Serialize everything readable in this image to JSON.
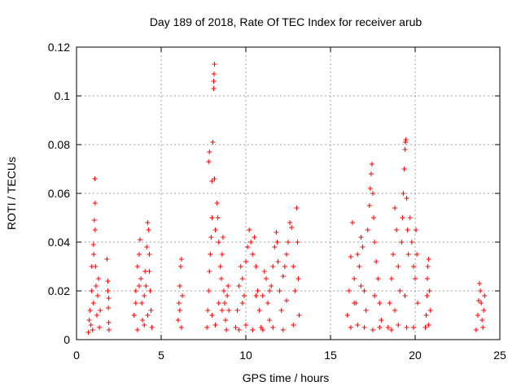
{
  "chart_data": {
    "type": "scatter",
    "title": "Day 189 of 2018, Rate Of TEC Index for receiver arub",
    "xlabel": "GPS time / hours",
    "ylabel": "ROTI / TECUs",
    "xlim": [
      0,
      25
    ],
    "ylim": [
      0,
      0.12
    ],
    "xticks": [
      0,
      5,
      10,
      15,
      20,
      25
    ],
    "xtick_labels": [
      "0",
      "5",
      "10",
      "15",
      "20",
      "25"
    ],
    "yticks": [
      0,
      0.02,
      0.04,
      0.06,
      0.08,
      0.1,
      0.12
    ],
    "ytick_labels": [
      "0",
      "0.02",
      "0.04",
      "0.06",
      "0.08",
      "0.1",
      "0.12"
    ],
    "grid": true,
    "marker": "+",
    "color": "#ff0000",
    "series": [
      {
        "name": "ROTI",
        "points": [
          [
            0.7,
            0.003
          ],
          [
            0.75,
            0.008
          ],
          [
            0.8,
            0.012
          ],
          [
            0.85,
            0.006
          ],
          [
            0.9,
            0.02
          ],
          [
            0.95,
            0.004
          ],
          [
            1.0,
            0.015
          ],
          [
            1.02,
            0.035
          ],
          [
            1.05,
            0.049
          ],
          [
            1.08,
            0.066
          ],
          [
            1.1,
            0.056
          ],
          [
            1.12,
            0.03
          ],
          [
            1.15,
            0.022
          ],
          [
            1.2,
            0.01
          ],
          [
            1.25,
            0.018
          ],
          [
            1.3,
            0.025
          ],
          [
            1.35,
            0.005
          ],
          [
            1.4,
            0.012
          ],
          [
            0.9,
            0.03
          ],
          [
            1.0,
            0.039
          ],
          [
            1.1,
            0.045
          ],
          [
            1.8,
            0.033
          ],
          [
            1.85,
            0.02
          ],
          [
            1.88,
            0.013
          ],
          [
            1.9,
            0.007
          ],
          [
            1.92,
            0.004
          ],
          [
            1.85,
            0.024
          ],
          [
            1.9,
            0.017
          ],
          [
            3.4,
            0.01
          ],
          [
            3.5,
            0.02
          ],
          [
            3.6,
            0.03
          ],
          [
            3.7,
            0.035
          ],
          [
            3.75,
            0.041
          ],
          [
            3.8,
            0.025
          ],
          [
            3.85,
            0.015
          ],
          [
            3.9,
            0.008
          ],
          [
            4.0,
            0.018
          ],
          [
            4.05,
            0.028
          ],
          [
            4.1,
            0.022
          ],
          [
            4.15,
            0.038
          ],
          [
            4.2,
            0.048
          ],
          [
            4.25,
            0.045
          ],
          [
            4.3,
            0.035
          ],
          [
            4.35,
            0.02
          ],
          [
            4.4,
            0.012
          ],
          [
            4.45,
            0.005
          ],
          [
            3.6,
            0.004
          ],
          [
            4.0,
            0.006
          ],
          [
            4.2,
            0.01
          ],
          [
            3.5,
            0.015
          ],
          [
            3.7,
            0.022
          ],
          [
            4.3,
            0.028
          ],
          [
            6.0,
            0.008
          ],
          [
            6.05,
            0.015
          ],
          [
            6.1,
            0.022
          ],
          [
            6.15,
            0.03
          ],
          [
            6.2,
            0.033
          ],
          [
            6.25,
            0.018
          ],
          [
            6.1,
            0.012
          ],
          [
            6.2,
            0.005
          ],
          [
            7.7,
            0.005
          ],
          [
            7.75,
            0.012
          ],
          [
            7.8,
            0.02
          ],
          [
            7.85,
            0.028
          ],
          [
            7.9,
            0.035
          ],
          [
            7.95,
            0.042
          ],
          [
            8.0,
            0.05
          ],
          [
            8.0,
            0.065
          ],
          [
            7.8,
            0.073
          ],
          [
            7.85,
            0.077
          ],
          [
            8.05,
            0.081
          ],
          [
            8.1,
            0.103
          ],
          [
            8.1,
            0.106
          ],
          [
            8.12,
            0.109
          ],
          [
            8.15,
            0.113
          ],
          [
            8.15,
            0.066
          ],
          [
            8.2,
            0.045
          ],
          [
            8.3,
            0.056
          ],
          [
            8.35,
            0.05
          ],
          [
            8.4,
            0.04
          ],
          [
            8.5,
            0.03
          ],
          [
            8.55,
            0.025
          ],
          [
            8.6,
            0.035
          ],
          [
            8.65,
            0.042
          ],
          [
            8.7,
            0.02
          ],
          [
            8.75,
            0.015
          ],
          [
            8.8,
            0.008
          ],
          [
            8.85,
            0.004
          ],
          [
            8.9,
            0.018
          ],
          [
            8.95,
            0.022
          ],
          [
            9.0,
            0.012
          ],
          [
            8.0,
            0.01
          ],
          [
            8.2,
            0.006
          ],
          [
            8.4,
            0.015
          ],
          [
            8.6,
            0.012
          ],
          [
            9.4,
            0.005
          ],
          [
            9.5,
            0.012
          ],
          [
            9.6,
            0.022
          ],
          [
            9.7,
            0.03
          ],
          [
            9.8,
            0.025
          ],
          [
            9.9,
            0.018
          ],
          [
            10.0,
            0.032
          ],
          [
            10.1,
            0.038
          ],
          [
            10.2,
            0.045
          ],
          [
            10.3,
            0.04
          ],
          [
            10.4,
            0.035
          ],
          [
            10.5,
            0.042
          ],
          [
            10.6,
            0.03
          ],
          [
            10.7,
            0.02
          ],
          [
            10.8,
            0.012
          ],
          [
            10.9,
            0.005
          ],
          [
            11.0,
            0.018
          ],
          [
            11.1,
            0.028
          ],
          [
            11.2,
            0.025
          ],
          [
            11.3,
            0.015
          ],
          [
            11.4,
            0.008
          ],
          [
            11.5,
            0.022
          ],
          [
            11.6,
            0.03
          ],
          [
            11.7,
            0.038
          ],
          [
            11.8,
            0.044
          ],
          [
            11.85,
            0.04
          ],
          [
            11.9,
            0.032
          ],
          [
            12.0,
            0.02
          ],
          [
            12.1,
            0.012
          ],
          [
            12.2,
            0.026
          ],
          [
            12.3,
            0.03
          ],
          [
            12.4,
            0.035
          ],
          [
            12.5,
            0.04
          ],
          [
            12.6,
            0.048
          ],
          [
            12.7,
            0.046
          ],
          [
            12.8,
            0.03
          ],
          [
            12.9,
            0.02
          ],
          [
            13.0,
            0.054
          ],
          [
            13.05,
            0.04
          ],
          [
            13.1,
            0.025
          ],
          [
            13.15,
            0.01
          ],
          [
            9.6,
            0.004
          ],
          [
            10.0,
            0.006
          ],
          [
            10.4,
            0.004
          ],
          [
            11.0,
            0.004
          ],
          [
            11.6,
            0.005
          ],
          [
            12.2,
            0.004
          ],
          [
            12.8,
            0.006
          ],
          [
            9.8,
            0.015
          ],
          [
            10.6,
            0.018
          ],
          [
            11.4,
            0.02
          ],
          [
            12.4,
            0.016
          ],
          [
            16.0,
            0.01
          ],
          [
            16.1,
            0.02
          ],
          [
            16.2,
            0.034
          ],
          [
            16.3,
            0.048
          ],
          [
            16.4,
            0.025
          ],
          [
            16.5,
            0.015
          ],
          [
            16.6,
            0.035
          ],
          [
            16.7,
            0.03
          ],
          [
            16.8,
            0.042
          ],
          [
            16.9,
            0.038
          ],
          [
            17.0,
            0.02
          ],
          [
            17.1,
            0.012
          ],
          [
            17.2,
            0.045
          ],
          [
            17.3,
            0.055
          ],
          [
            17.35,
            0.062
          ],
          [
            17.4,
            0.068
          ],
          [
            17.45,
            0.072
          ],
          [
            17.5,
            0.06
          ],
          [
            17.55,
            0.05
          ],
          [
            17.6,
            0.04
          ],
          [
            17.7,
            0.032
          ],
          [
            17.8,
            0.025
          ],
          [
            17.9,
            0.015
          ],
          [
            18.0,
            0.008
          ],
          [
            16.2,
            0.005
          ],
          [
            16.6,
            0.006
          ],
          [
            17.0,
            0.005
          ],
          [
            17.5,
            0.004
          ],
          [
            17.9,
            0.005
          ],
          [
            16.4,
            0.015
          ],
          [
            16.8,
            0.022
          ],
          [
            17.6,
            0.018
          ],
          [
            18.4,
            0.005
          ],
          [
            18.5,
            0.015
          ],
          [
            18.6,
            0.025
          ],
          [
            18.7,
            0.035
          ],
          [
            18.8,
            0.054
          ],
          [
            18.9,
            0.045
          ],
          [
            19.0,
            0.03
          ],
          [
            19.1,
            0.02
          ],
          [
            19.2,
            0.04
          ],
          [
            19.25,
            0.05
          ],
          [
            19.3,
            0.06
          ],
          [
            19.35,
            0.07
          ],
          [
            19.4,
            0.078
          ],
          [
            19.42,
            0.081
          ],
          [
            19.45,
            0.082
          ],
          [
            19.5,
            0.058
          ],
          [
            19.55,
            0.045
          ],
          [
            19.6,
            0.035
          ],
          [
            19.7,
            0.05
          ],
          [
            19.8,
            0.04
          ],
          [
            19.9,
            0.03
          ],
          [
            20.0,
            0.025
          ],
          [
            20.05,
            0.045
          ],
          [
            20.1,
            0.035
          ],
          [
            20.15,
            0.015
          ],
          [
            18.6,
            0.004
          ],
          [
            19.0,
            0.006
          ],
          [
            19.5,
            0.005
          ],
          [
            19.9,
            0.005
          ],
          [
            18.8,
            0.012
          ],
          [
            19.4,
            0.018
          ],
          [
            20.6,
            0.005
          ],
          [
            20.65,
            0.01
          ],
          [
            20.7,
            0.018
          ],
          [
            20.72,
            0.025
          ],
          [
            20.75,
            0.03
          ],
          [
            20.8,
            0.033
          ],
          [
            20.85,
            0.02
          ],
          [
            20.9,
            0.012
          ],
          [
            20.8,
            0.006
          ],
          [
            23.6,
            0.004
          ],
          [
            23.7,
            0.01
          ],
          [
            23.75,
            0.016
          ],
          [
            23.8,
            0.023
          ],
          [
            23.85,
            0.02
          ],
          [
            23.9,
            0.015
          ],
          [
            23.95,
            0.008
          ],
          [
            24.0,
            0.005
          ],
          [
            24.05,
            0.012
          ],
          [
            24.1,
            0.018
          ]
        ]
      }
    ]
  }
}
